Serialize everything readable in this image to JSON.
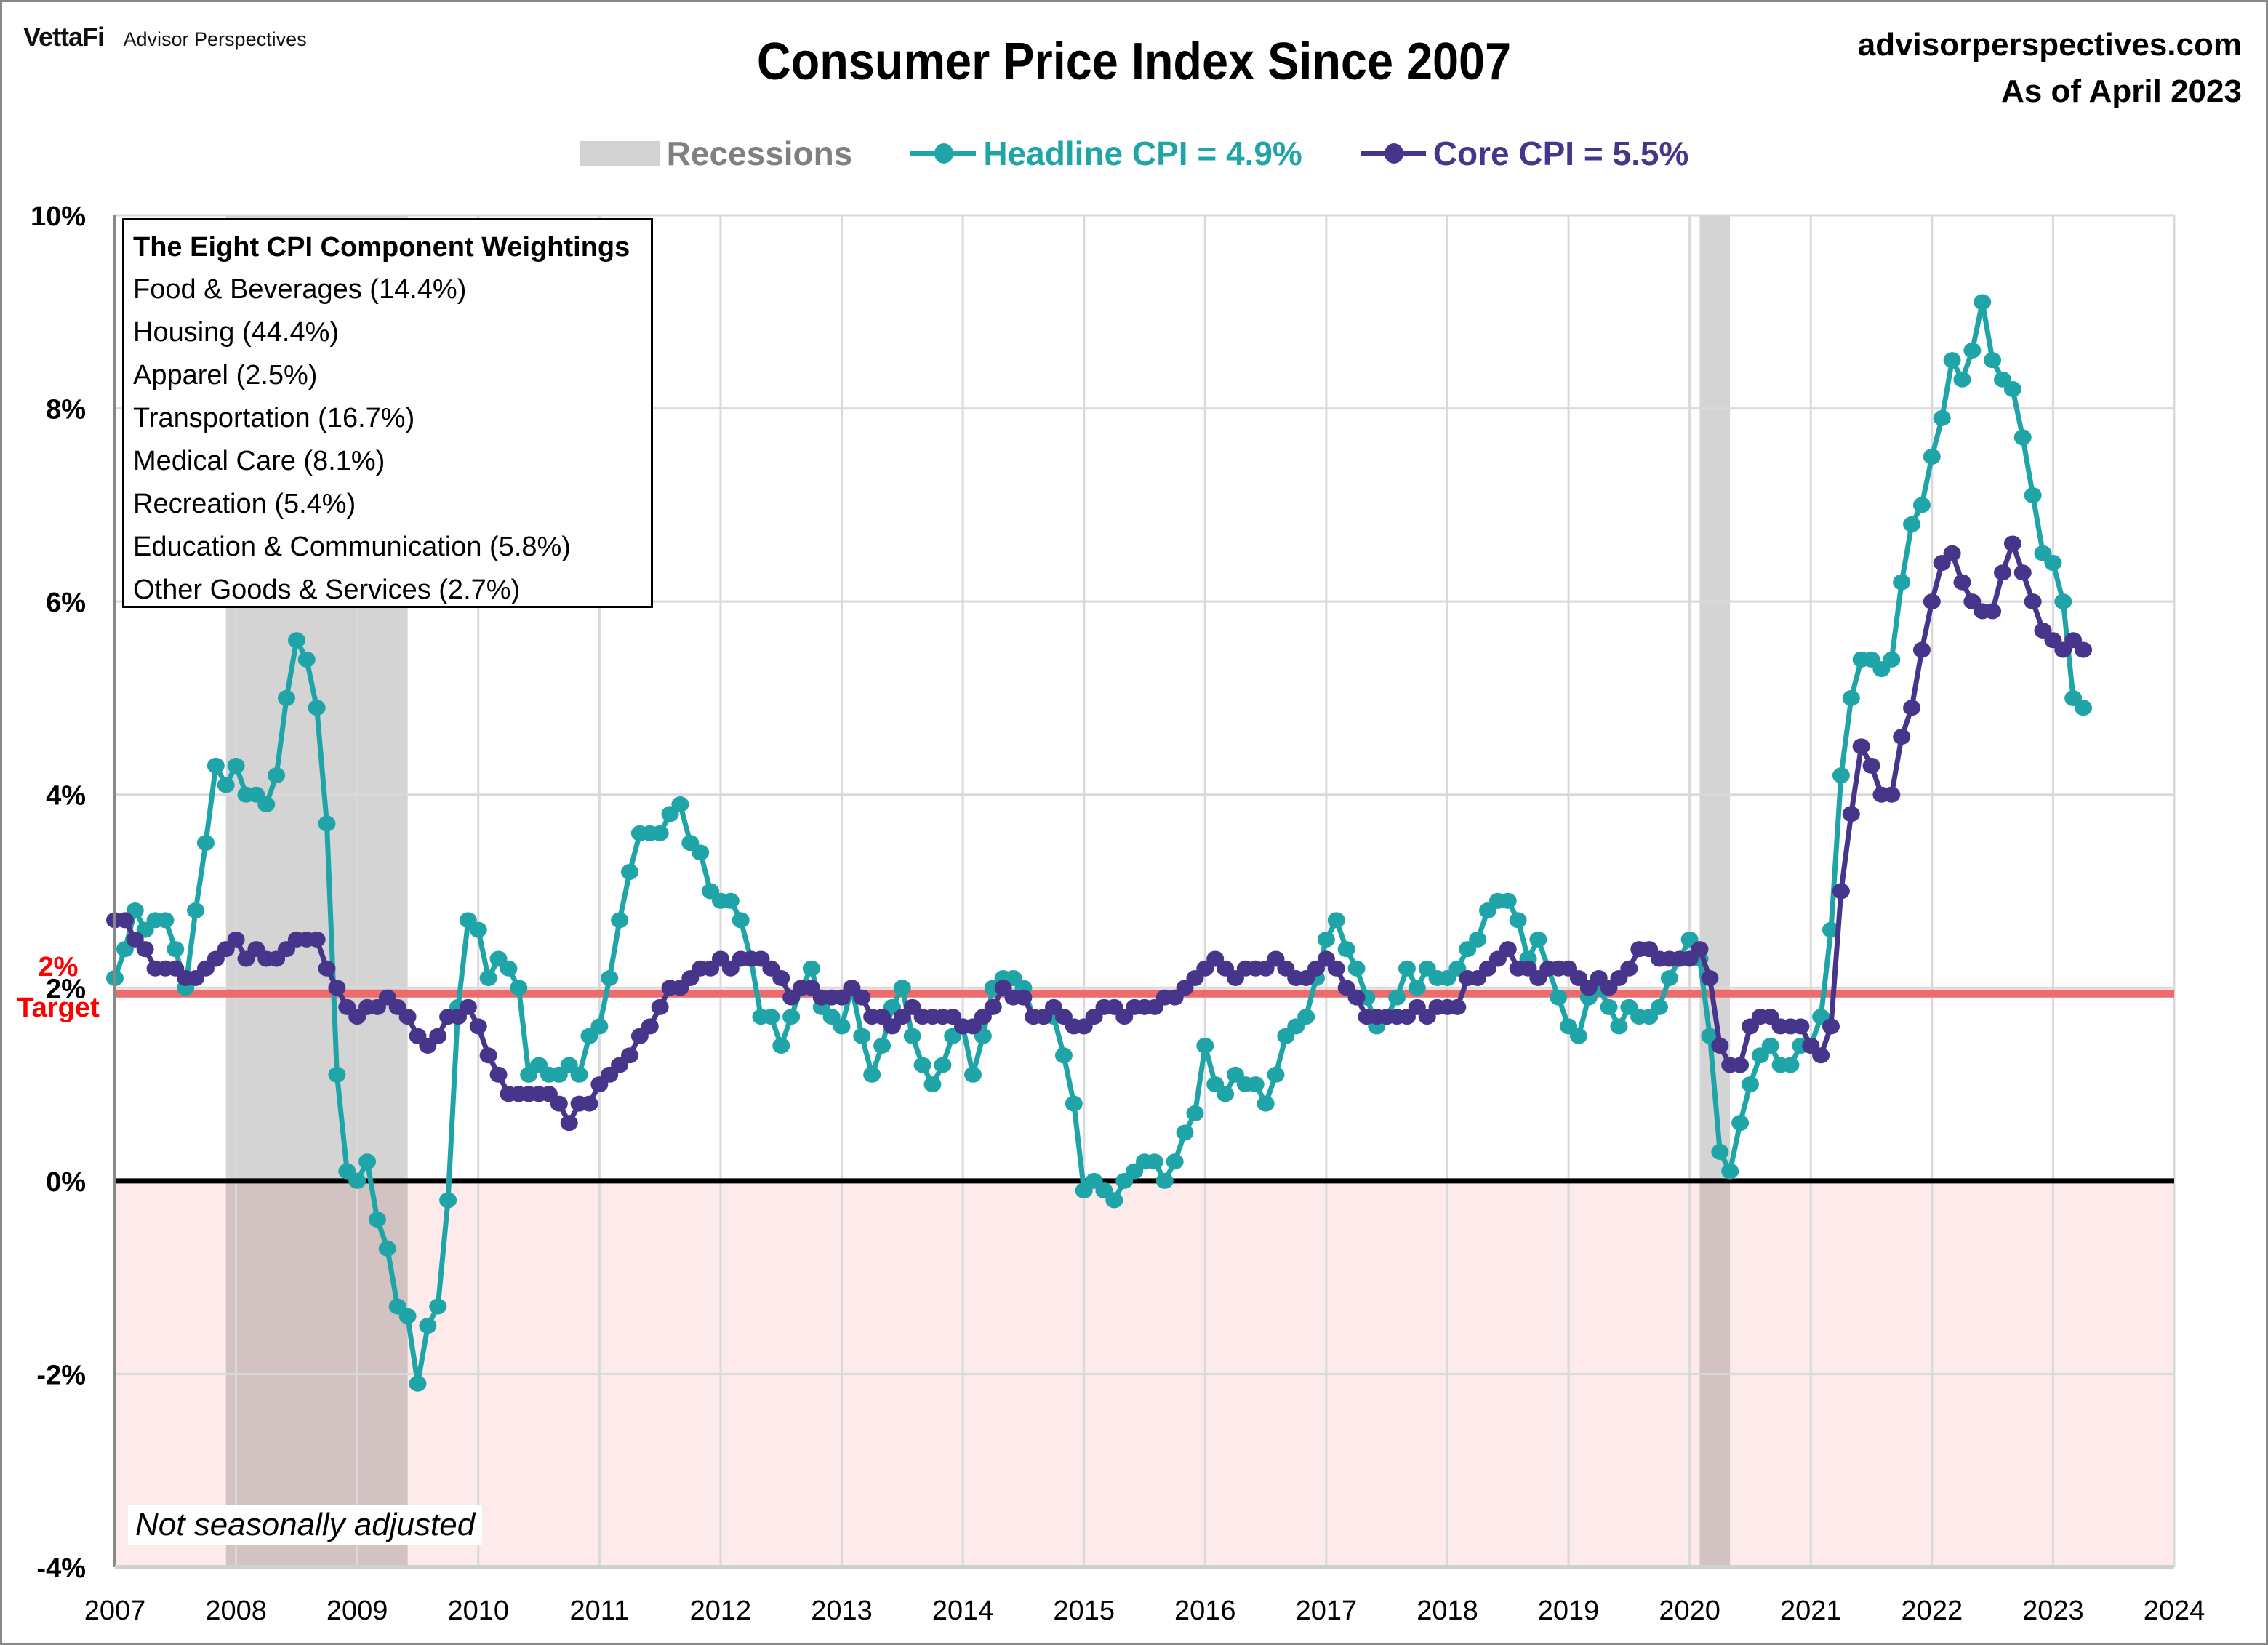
{
  "brand": {
    "logo": "VettaFi",
    "name": "Advisor Perspectives"
  },
  "header": {
    "title": "Consumer Price Index Since 2007",
    "site": "advisorperspectives.com",
    "as_of": "As of April 2023"
  },
  "legend": {
    "recessions": "Recessions",
    "headline": "Headline CPI = 4.9%",
    "core": "Core CPI =  5.5%"
  },
  "colors": {
    "headline": "#1fa5a8",
    "core": "#47358c",
    "target": "#ee6b6b",
    "recession": "#d2d2d2",
    "negative_zone": "#fdeaea",
    "legend_recession_text": "#808080"
  },
  "target_label": {
    "line1": "2%",
    "line2": "Target"
  },
  "weightings": {
    "title": "The Eight CPI Component Weightings",
    "items": [
      "Food & Beverages (14.4%)",
      "Housing (44.4%)",
      "Apparel (2.5%)",
      "Transportation (16.7%)",
      "Medical Care (8.1%)",
      "Recreation (5.4%)",
      "Education & Communication (5.8%)",
      "Other Goods & Services (2.7%)"
    ]
  },
  "note": "Not seasonally adjusted",
  "chart_data": {
    "type": "line",
    "title": "Consumer Price Index Since 2007",
    "xlabel": "",
    "ylabel": "",
    "x_start": "2007-01",
    "x_end": "2023-04",
    "frequency": "monthly",
    "xlim": [
      2007,
      2024
    ],
    "ylim": [
      -4,
      10
    ],
    "yticks": [
      -4,
      -2,
      0,
      2,
      4,
      6,
      8,
      10
    ],
    "ytick_labels": [
      "-4%",
      "-2%",
      "0%",
      "2%",
      "4%",
      "6%",
      "8%",
      "10%"
    ],
    "xtick_labels": [
      "2007",
      "2008",
      "2009",
      "2010",
      "2011",
      "2012",
      "2013",
      "2014",
      "2015",
      "2016",
      "2017",
      "2018",
      "2019",
      "2020",
      "2021",
      "2022",
      "2023",
      "2024"
    ],
    "grid": true,
    "legend_position": "top-center",
    "target_line": 2,
    "recessions": [
      [
        2007.917,
        2009.417
      ],
      [
        2020.083,
        2020.333
      ]
    ],
    "series": [
      {
        "name": "Headline CPI",
        "values": [
          2.1,
          2.4,
          2.8,
          2.6,
          2.7,
          2.7,
          2.4,
          2.0,
          2.8,
          3.5,
          4.3,
          4.1,
          4.3,
          4.0,
          4.0,
          3.9,
          4.2,
          5.0,
          5.6,
          5.4,
          4.9,
          3.7,
          1.1,
          0.1,
          0.0,
          0.2,
          -0.4,
          -0.7,
          -1.3,
          -1.4,
          -2.1,
          -1.5,
          -1.3,
          -0.2,
          1.8,
          2.7,
          2.6,
          2.1,
          2.3,
          2.2,
          2.0,
          1.1,
          1.2,
          1.1,
          1.1,
          1.2,
          1.1,
          1.5,
          1.6,
          2.1,
          2.7,
          3.2,
          3.6,
          3.6,
          3.6,
          3.8,
          3.9,
          3.5,
          3.4,
          3.0,
          2.9,
          2.9,
          2.7,
          2.3,
          1.7,
          1.7,
          1.4,
          1.7,
          2.0,
          2.2,
          1.8,
          1.7,
          1.6,
          2.0,
          1.5,
          1.1,
          1.4,
          1.8,
          2.0,
          1.5,
          1.2,
          1.0,
          1.2,
          1.5,
          1.6,
          1.1,
          1.5,
          2.0,
          2.1,
          2.1,
          2.0,
          1.7,
          1.7,
          1.7,
          1.3,
          0.8,
          -0.1,
          0.0,
          -0.1,
          -0.2,
          0.0,
          0.1,
          0.2,
          0.2,
          0.0,
          0.2,
          0.5,
          0.7,
          1.4,
          1.0,
          0.9,
          1.1,
          1.0,
          1.0,
          0.8,
          1.1,
          1.5,
          1.6,
          1.7,
          2.1,
          2.5,
          2.7,
          2.4,
          2.2,
          1.9,
          1.6,
          1.7,
          1.9,
          2.2,
          2.0,
          2.2,
          2.1,
          2.1,
          2.2,
          2.4,
          2.5,
          2.8,
          2.9,
          2.9,
          2.7,
          2.3,
          2.5,
          2.2,
          1.9,
          1.6,
          1.5,
          1.9,
          2.0,
          1.8,
          1.6,
          1.8,
          1.7,
          1.7,
          1.8,
          2.1,
          2.3,
          2.5,
          2.3,
          1.5,
          0.3,
          0.1,
          0.6,
          1.0,
          1.3,
          1.4,
          1.2,
          1.2,
          1.4,
          1.4,
          1.7,
          2.6,
          4.2,
          5.0,
          5.4,
          5.4,
          5.3,
          5.4,
          6.2,
          6.8,
          7.0,
          7.5,
          7.9,
          8.5,
          8.3,
          8.6,
          9.1,
          8.5,
          8.3,
          8.2,
          7.7,
          7.1,
          6.5,
          6.4,
          6.0,
          5.0,
          4.9
        ]
      },
      {
        "name": "Core CPI",
        "values": [
          2.7,
          2.7,
          2.5,
          2.4,
          2.2,
          2.2,
          2.2,
          2.1,
          2.1,
          2.2,
          2.3,
          2.4,
          2.5,
          2.3,
          2.4,
          2.3,
          2.3,
          2.4,
          2.5,
          2.5,
          2.5,
          2.2,
          2.0,
          1.8,
          1.7,
          1.8,
          1.8,
          1.9,
          1.8,
          1.7,
          1.5,
          1.4,
          1.5,
          1.7,
          1.7,
          1.8,
          1.6,
          1.3,
          1.1,
          0.9,
          0.9,
          0.9,
          0.9,
          0.9,
          0.8,
          0.6,
          0.8,
          0.8,
          1.0,
          1.1,
          1.2,
          1.3,
          1.5,
          1.6,
          1.8,
          2.0,
          2.0,
          2.1,
          2.2,
          2.2,
          2.3,
          2.2,
          2.3,
          2.3,
          2.3,
          2.2,
          2.1,
          1.9,
          2.0,
          2.0,
          1.9,
          1.9,
          1.9,
          2.0,
          1.9,
          1.7,
          1.7,
          1.6,
          1.7,
          1.8,
          1.7,
          1.7,
          1.7,
          1.7,
          1.6,
          1.6,
          1.7,
          1.8,
          2.0,
          1.9,
          1.9,
          1.7,
          1.7,
          1.8,
          1.7,
          1.6,
          1.6,
          1.7,
          1.8,
          1.8,
          1.7,
          1.8,
          1.8,
          1.8,
          1.9,
          1.9,
          2.0,
          2.1,
          2.2,
          2.3,
          2.2,
          2.1,
          2.2,
          2.2,
          2.2,
          2.3,
          2.2,
          2.1,
          2.1,
          2.2,
          2.3,
          2.2,
          2.0,
          1.9,
          1.7,
          1.7,
          1.7,
          1.7,
          1.7,
          1.8,
          1.7,
          1.8,
          1.8,
          1.8,
          2.1,
          2.1,
          2.2,
          2.3,
          2.4,
          2.2,
          2.2,
          2.1,
          2.2,
          2.2,
          2.2,
          2.1,
          2.0,
          2.1,
          2.0,
          2.1,
          2.2,
          2.4,
          2.4,
          2.3,
          2.3,
          2.3,
          2.3,
          2.4,
          2.1,
          1.4,
          1.2,
          1.2,
          1.6,
          1.7,
          1.7,
          1.6,
          1.6,
          1.6,
          1.4,
          1.3,
          1.6,
          3.0,
          3.8,
          4.5,
          4.3,
          4.0,
          4.0,
          4.6,
          4.9,
          5.5,
          6.0,
          6.4,
          6.5,
          6.2,
          6.0,
          5.9,
          5.9,
          6.3,
          6.6,
          6.3,
          6.0,
          5.7,
          5.6,
          5.5,
          5.6,
          5.5
        ]
      }
    ]
  }
}
